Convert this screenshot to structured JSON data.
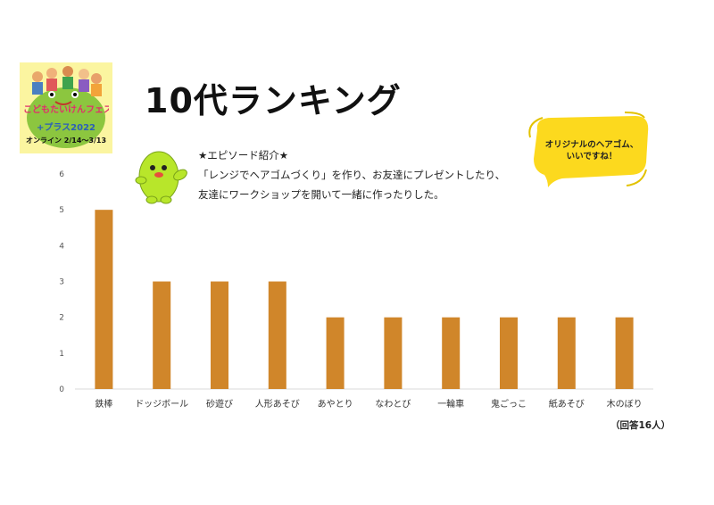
{
  "logo": {
    "main_text": "こどもたいけんフェス",
    "sub_text": "+プラス2022",
    "date_text": "オンライン 2/14〜3/13"
  },
  "page": {
    "title": "10代ランキング"
  },
  "episode": {
    "heading": "★エピソード紹介★",
    "line1": "「レンジでヘアゴムづくり」を作り、お友達にプレゼントしたり、",
    "line2": "友達にワークショップを開いて一緒に作ったりした。"
  },
  "bubble": {
    "line1": "オリジナルのヘアゴム、",
    "line2": "いいですね！"
  },
  "respondents": "（回答16人）",
  "colors": {
    "bar": "#d0862a",
    "bubble": "#fcd91e",
    "mascot": "#b8e62a",
    "logo_bg": "#fbf5a0"
  },
  "chart_data": {
    "type": "bar",
    "categories": [
      "鉄棒",
      "ドッジボール",
      "砂遊び",
      "人形あそび",
      "あやとり",
      "なわとび",
      "一輪車",
      "鬼ごっこ",
      "紙あそび",
      "木のぼり"
    ],
    "values": [
      5,
      3,
      3,
      3,
      2,
      2,
      2,
      2,
      2,
      2
    ],
    "yticks": [
      0,
      1,
      2,
      3,
      4,
      5,
      6
    ],
    "ylim": [
      0,
      6
    ],
    "grid": false,
    "legend": "none"
  }
}
